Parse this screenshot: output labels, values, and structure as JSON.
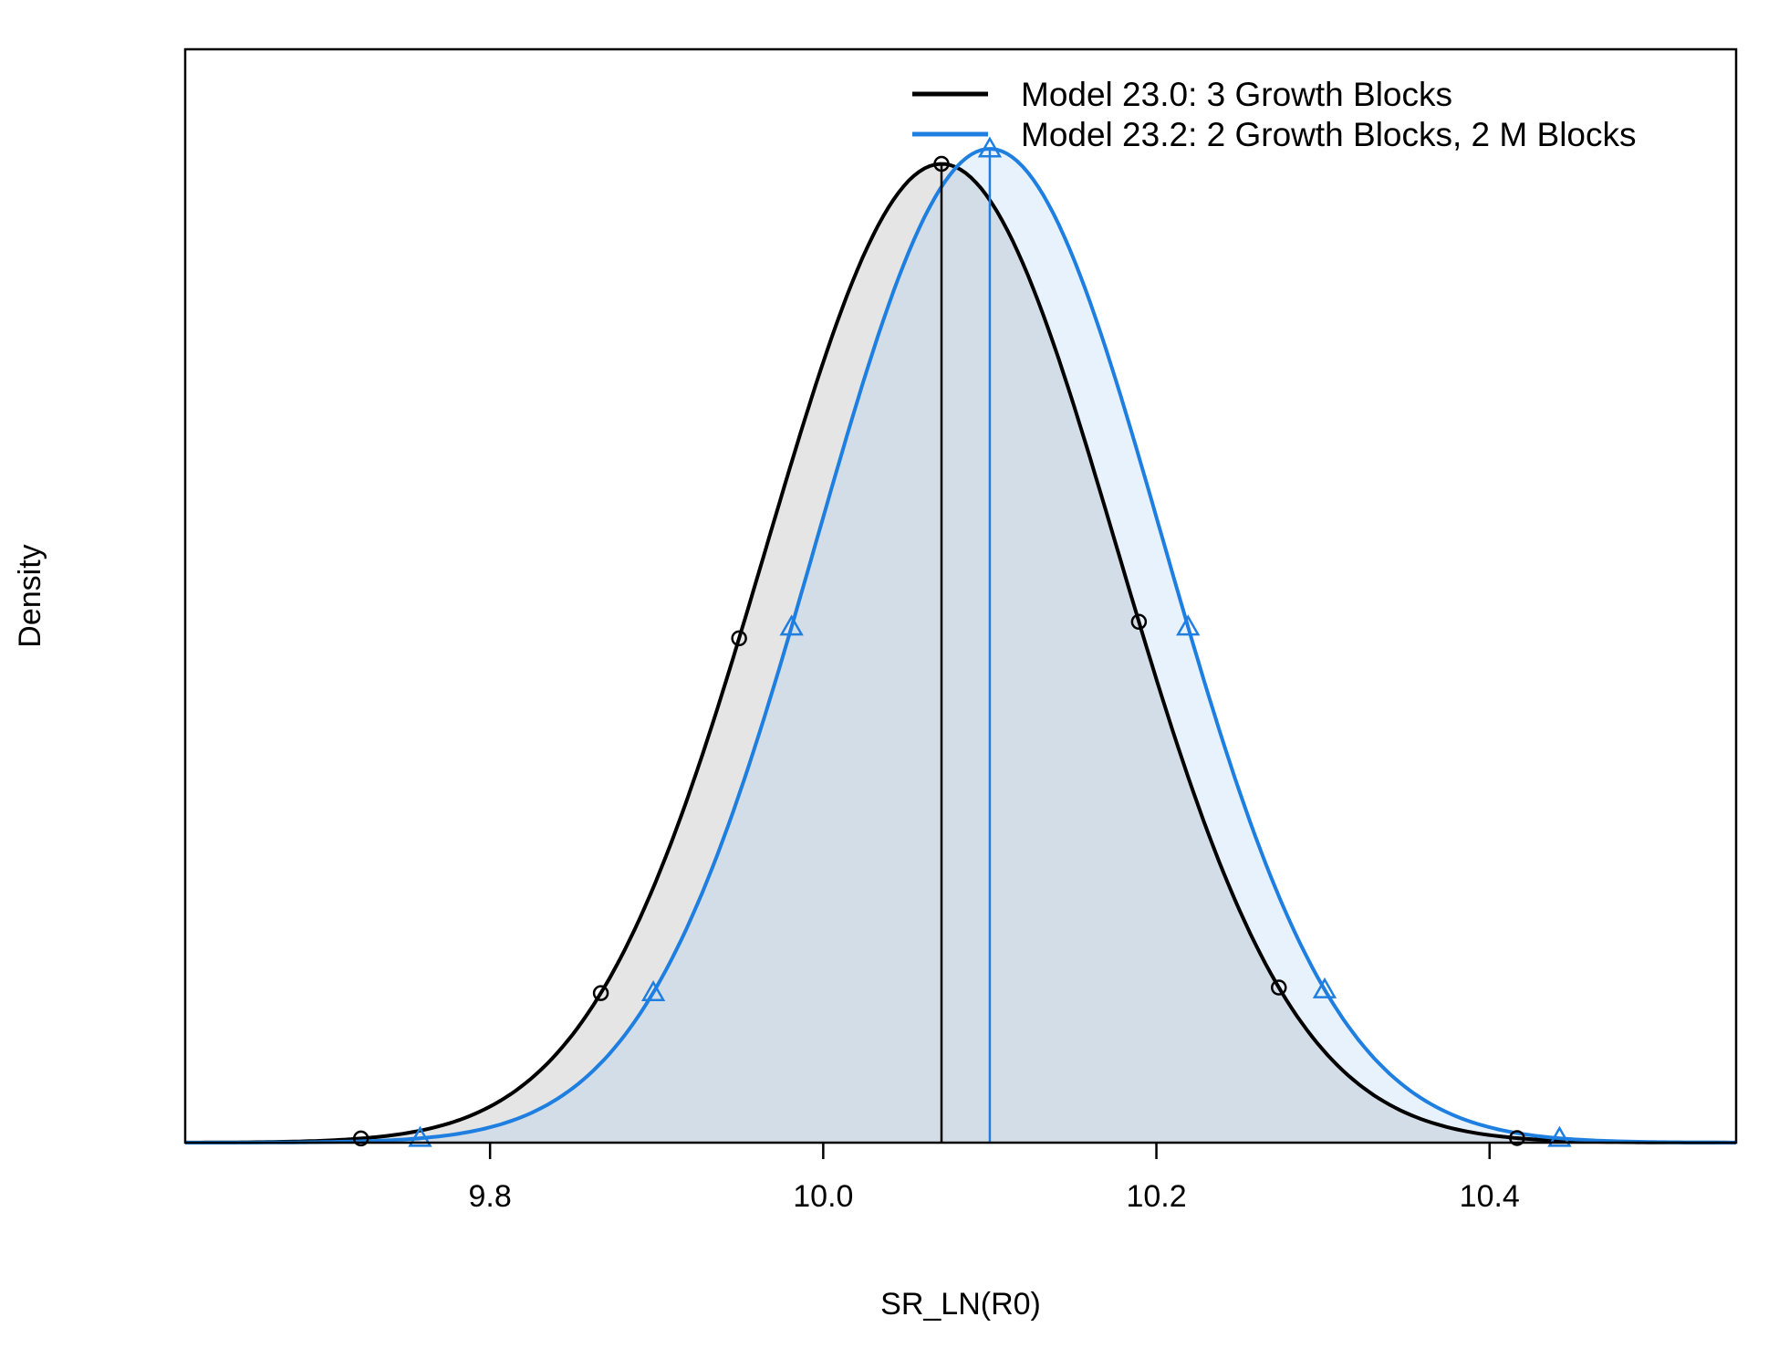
{
  "chart_data": {
    "type": "line",
    "xlabel": "SR_LN(R0)",
    "ylabel": "Density",
    "xlim": [
      9.617,
      10.548
    ],
    "x_ticks": [
      "9.8",
      "10.0",
      "10.2",
      "10.4"
    ],
    "y_ticks_shown": false,
    "legend_position": "top-right",
    "series": [
      {
        "name": "Model 23.0: 3 Growth Blocks",
        "color": "#000000",
        "fill": "rgba(150,150,150,0.25)",
        "marker": "circle",
        "mean": 10.071,
        "sd": 0.1055,
        "marker_x": [
          9.7225,
          9.8665,
          9.9495,
          10.071,
          10.1895,
          10.2735,
          10.4165
        ],
        "lower_95": 9.7225,
        "upper_95": 10.4165
      },
      {
        "name": "Model 23.2: 2 Growth Blocks, 2 M Blocks",
        "color": "#1e7fe0",
        "fill": "rgba(140,190,245,0.2)",
        "marker": "triangle",
        "mean": 10.1,
        "sd": 0.1039,
        "marker_x": [
          9.758,
          9.898,
          9.981,
          10.1,
          10.219,
          10.301,
          10.442
        ],
        "lower_95": 9.758,
        "upper_95": 10.442
      }
    ]
  }
}
